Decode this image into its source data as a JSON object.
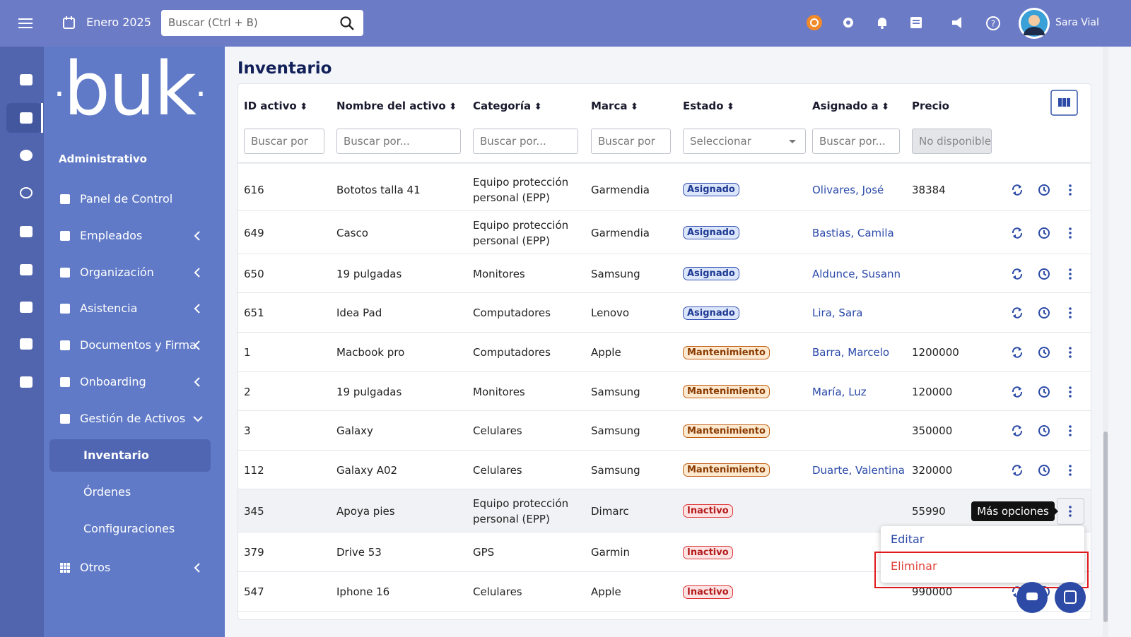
{
  "topbar": {
    "month": "Enero 2025",
    "search_placeholder": "Buscar (Ctrl + B)",
    "user": "Sara Vial"
  },
  "sidebar": {
    "logo": "buk",
    "section": "Administrativo",
    "items": [
      "Panel de Control",
      "Empleados",
      "Organización",
      "Asistencia",
      "Documentos y Firma",
      "Onboarding",
      "Gestión de Activos"
    ],
    "subitems": [
      "Inventario",
      "Órdenes",
      "Configuraciones"
    ],
    "last_item": "Otros"
  },
  "page": {
    "title": "Inventario"
  },
  "table": {
    "columns": [
      "ID activo",
      "Nombre del activo",
      "Categoría",
      "Marca",
      "Estado",
      "Asignado a",
      "Precio"
    ],
    "filters": [
      "Buscar por",
      "Buscar por...",
      "Buscar por...",
      "Buscar por",
      "Seleccionar",
      "Buscar por...",
      "No disponible"
    ],
    "rows": [
      [
        "616",
        "Bototos talla 41",
        "Equipo protección personal (EPP)",
        "Garmendia",
        "Asignado",
        "Olivares, José",
        "38384"
      ],
      [
        "649",
        "Casco",
        "Equipo protección personal (EPP)",
        "Garmendia",
        "Asignado",
        "Bastias, Camila",
        null
      ],
      [
        "650",
        "19 pulgadas",
        "Monitores",
        "Samsung",
        "Asignado",
        "Aldunce, Susann",
        null
      ],
      [
        "651",
        "Idea Pad",
        "Computadores",
        "Lenovo",
        "Asignado",
        "Lira, Sara",
        null
      ],
      [
        "1",
        "Macbook pro",
        "Computadores",
        "Apple",
        "Mantenimiento",
        "Barra, Marcelo",
        "1200000"
      ],
      [
        "2",
        "19 pulgadas",
        "Monitores",
        "Samsung",
        "Mantenimiento",
        "María, Luz",
        "120000"
      ],
      [
        "3",
        "Galaxy",
        "Celulares",
        "Samsung",
        "Mantenimiento",
        null,
        "350000"
      ],
      [
        "112",
        "Galaxy A02",
        "Celulares",
        "Samsung",
        "Mantenimiento",
        "Duarte, Valentina",
        "320000"
      ],
      [
        "345",
        "Apoya pies",
        "Equipo protección personal (EPP)",
        "Dimarc",
        "Inactivo",
        null,
        "55990"
      ],
      [
        "379",
        "Drive 53",
        "GPS",
        "Garmin",
        "Inactivo",
        null,
        null
      ],
      [
        "547",
        "Iphone 16",
        "Celulares",
        "Apple",
        "Inactivo",
        null,
        "990000"
      ]
    ]
  },
  "tooltip": "Más opciones",
  "menu": [
    "Editar",
    "Eliminar"
  ]
}
